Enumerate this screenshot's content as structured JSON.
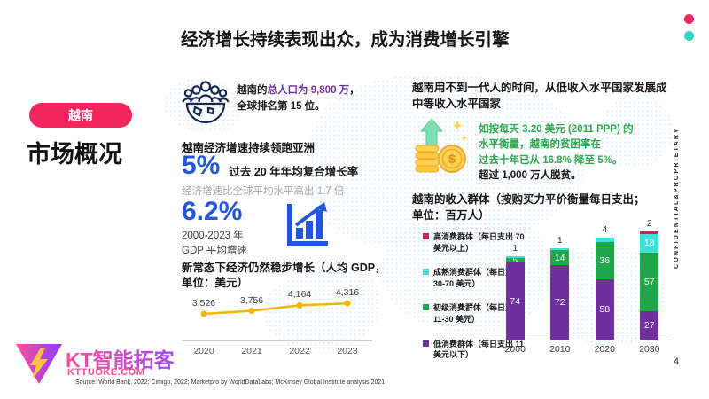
{
  "colors": {
    "accent_pink": "#f1265c",
    "accent_teal": "#2fd9c7",
    "stat_blue": "#2356db",
    "highlight_purple": "#7030a0",
    "poverty_green": "#2fa84e",
    "line_gold": "#f2b600"
  },
  "header": {
    "title": "经济增长持续表现出众，成为消费增长引擎",
    "confidential": "CONFIDENTIAL&PROPRIETARY",
    "page_number": "4"
  },
  "sidebar": {
    "badge": "越南",
    "section_title": "市场概况"
  },
  "population": {
    "prefix": "越南的",
    "highlight": "总人口为 9,800 万",
    "suffix": "，",
    "line2": "全球排名第 15 位。"
  },
  "economy": {
    "heading": "越南经济增速持续领跑亚洲",
    "stat1_value": "5%",
    "stat1_label": "过去 20 年年均复合增长率",
    "note": "经济增速比全球平均水平高出 1.7 倍",
    "stat2_value": "6.2%",
    "stat2_period": "2000-2023 年",
    "stat2_label": "GDP 平均增速",
    "gdp_heading_line1": "新常态下经济仍然稳步增长（人均 GDP，",
    "gdp_heading_line2": "单位：美元）"
  },
  "income_story": {
    "heading_line1": "越南用不到一代人的时间，从低收入水平国家发展成",
    "heading_line2": "中等收入水平国家",
    "poverty_line1": "如按每天 3.20 美元 (2011 PPP) 的",
    "poverty_line2": "水平衡量，越南的贫困率在",
    "poverty_line3": "过去十年已从 16.8% 降至 5%。",
    "note": "超过 1,000 万人脱贫。"
  },
  "income_chart": {
    "title_line1": "越南的收入群体（按购买力平价衡量每日支出；",
    "title_line2": "单位：百万人）",
    "legend": [
      {
        "label": "高消费群体（每日支出 70 美元以上）",
        "color": "#c9235e"
      },
      {
        "label": "成熟消费群体（每日支出 30-70 美元）",
        "color": "#3fe0d8"
      },
      {
        "label": "初级消费群体（每日支出 11-30 美元）",
        "color": "#21a64b"
      },
      {
        "label": "低消费群体（每日支出 11 美元以下）",
        "color": "#7030a0"
      }
    ]
  },
  "footer": {
    "logo_text": "KT智能拓客",
    "logo_domain": "KTTUOKE.COM",
    "source": "Source: World Bank, 2022; Cimigo, 2022; Marketpro by WorldDataLabs; McKinsey Global Institute analysis 2021"
  },
  "chart_data": [
    {
      "type": "line",
      "title": "新常态下经济仍然稳步增长（人均 GDP，单位：美元）",
      "ylabel": "人均 GDP（美元）",
      "x": [
        "2020",
        "2021",
        "2022",
        "2023"
      ],
      "values": [
        3526,
        3756,
        4164,
        4316
      ],
      "color": "#f2b600",
      "grid": false,
      "data_labels": true
    },
    {
      "type": "bar",
      "subtype": "stacked",
      "title": "越南的收入群体（按购买力平价衡量每日支出；单位：百万人）",
      "ylabel": "百万人",
      "categories": [
        "2000",
        "2010",
        "2020",
        "2030"
      ],
      "series": [
        {
          "name": "低消费群体（每日支出 11 美元以下）",
          "color": "#7030a0",
          "values": [
            74,
            72,
            58,
            27
          ]
        },
        {
          "name": "初级消费群体（每日支出 11-30 美元）",
          "color": "#21a64b",
          "values": [
            5,
            14,
            36,
            57
          ]
        },
        {
          "name": "成熟消费群体（每日支出 30-70 美元）",
          "color": "#3fe0d8",
          "values": [
            1,
            1,
            4,
            18
          ]
        },
        {
          "name": "高消费群体（每日支出 70 美元以上）",
          "color": "#c9235e",
          "values": [
            0,
            0,
            0,
            2
          ]
        }
      ],
      "legend_position": "left",
      "grid": false
    }
  ]
}
